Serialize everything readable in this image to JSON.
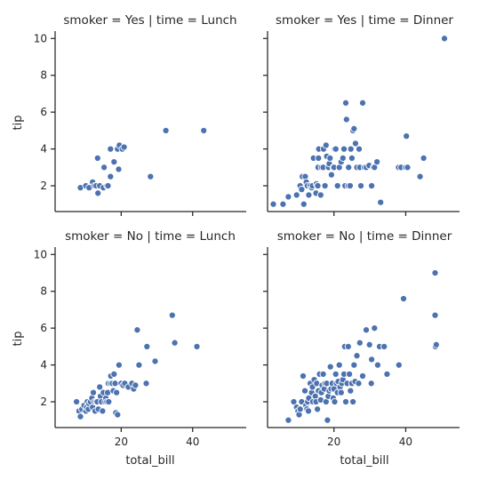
{
  "colors": {
    "point": "#4c72b0",
    "axis": "#262626",
    "background": "#ffffff"
  },
  "axis_labels": {
    "x": "total_bill",
    "y": "tip"
  },
  "chart_data": [
    {
      "type": "scatter",
      "title": "smoker = Yes | time = Lunch",
      "xlim": [
        1.5,
        55
      ],
      "ylim": [
        0.6,
        10.4
      ],
      "xticks": [
        20,
        40
      ],
      "yticks": [
        2,
        4,
        6,
        8,
        10
      ],
      "x": [
        8.6,
        10.1,
        11.0,
        12.0,
        12.5,
        13.0,
        13.4,
        13.5,
        14.0,
        15.0,
        15.2,
        16.0,
        16.3,
        17.0,
        17.0,
        18.0,
        19.0,
        19.3,
        19.5,
        20.3,
        20.8,
        28.2,
        32.5,
        43.1
      ],
      "y": [
        1.9,
        2.0,
        1.9,
        2.2,
        2.0,
        2.0,
        3.5,
        1.6,
        2.0,
        1.9,
        3.0,
        2.0,
        2.0,
        2.5,
        4.0,
        3.3,
        4.0,
        2.9,
        4.2,
        4.0,
        4.1,
        2.5,
        5.0,
        5.0
      ]
    },
    {
      "type": "scatter",
      "title": "smoker = Yes | time = Dinner",
      "xlim": [
        1.5,
        55
      ],
      "ylim": [
        0.6,
        10.4
      ],
      "xticks": [
        20,
        40
      ],
      "yticks": [
        2,
        4,
        6,
        8,
        10
      ],
      "x": [
        3.1,
        5.8,
        7.3,
        9.6,
        10.6,
        11.0,
        11.2,
        11.6,
        12.0,
        12.3,
        12.6,
        13.0,
        13.4,
        13.8,
        14.0,
        14.3,
        15.0,
        15.1,
        15.4,
        15.5,
        15.6,
        15.7,
        15.8,
        16.3,
        16.5,
        17.0,
        17.1,
        17.5,
        17.8,
        18.0,
        18.5,
        18.7,
        18.9,
        19.3,
        19.8,
        20.0,
        20.2,
        20.5,
        21.0,
        21.5,
        22.0,
        22.5,
        22.8,
        23.1,
        23.3,
        23.5,
        24.0,
        24.1,
        24.5,
        24.7,
        25.0,
        25.3,
        25.6,
        26.0,
        26.4,
        27.0,
        27.2,
        27.5,
        28.0,
        28.5,
        29.0,
        29.8,
        30.5,
        31.0,
        31.3,
        32.0,
        33.0,
        38.0,
        38.7,
        40.0,
        40.2,
        40.5,
        44.0,
        45.0,
        50.8
      ],
      "y": [
        1.0,
        1.0,
        1.4,
        1.5,
        2.0,
        1.8,
        2.5,
        1.0,
        2.5,
        2.2,
        2.0,
        1.5,
        2.0,
        1.9,
        2.0,
        3.5,
        1.6,
        2.1,
        2.0,
        2.0,
        3.0,
        3.5,
        4.0,
        1.5,
        3.0,
        3.0,
        4.0,
        2.0,
        4.2,
        3.6,
        3.0,
        3.2,
        3.5,
        2.6,
        3.0,
        3.0,
        4.0,
        4.0,
        2.0,
        3.0,
        3.3,
        3.5,
        4.0,
        2.0,
        6.5,
        5.6,
        2.0,
        3.0,
        2.0,
        4.0,
        3.5,
        5.0,
        5.1,
        4.3,
        3.0,
        4.0,
        3.0,
        2.0,
        6.5,
        3.0,
        3.0,
        3.1,
        2.0,
        3.0,
        3.0,
        3.3,
        1.1,
        3.0,
        3.0,
        3.0,
        4.7,
        3.0,
        2.5,
        3.5,
        10.0
      ]
    },
    {
      "type": "scatter",
      "title": "smoker = No | time = Lunch",
      "xlim": [
        1.5,
        55
      ],
      "ylim": [
        0.6,
        10.4
      ],
      "xticks": [
        20,
        40
      ],
      "yticks": [
        2,
        4,
        6,
        8,
        10
      ],
      "x": [
        7.5,
        8.2,
        8.6,
        9.0,
        9.6,
        10.1,
        10.3,
        10.5,
        10.8,
        11.0,
        11.4,
        11.8,
        12.0,
        12.2,
        12.5,
        12.7,
        13.0,
        13.3,
        13.6,
        14.0,
        14.2,
        14.5,
        14.8,
        15.0,
        15.5,
        15.7,
        16.0,
        16.2,
        16.4,
        16.5,
        17.0,
        17.1,
        17.5,
        17.8,
        18.0,
        18.3,
        18.5,
        18.7,
        19.0,
        19.4,
        20.0,
        20.5,
        21.0,
        22.0,
        23.0,
        23.5,
        24.0,
        24.5,
        25.0,
        27.0,
        27.2,
        29.5,
        34.3,
        35.0,
        41.2
      ],
      "y": [
        2.0,
        1.5,
        1.2,
        1.6,
        1.8,
        1.5,
        1.7,
        2.0,
        1.6,
        1.9,
        2.0,
        2.2,
        1.7,
        2.5,
        2.0,
        1.5,
        2.0,
        2.0,
        1.6,
        2.8,
        2.3,
        2.0,
        1.5,
        2.5,
        2.0,
        2.2,
        2.0,
        2.5,
        3.0,
        2.0,
        3.0,
        3.4,
        3.0,
        2.6,
        3.5,
        3.0,
        1.4,
        2.5,
        1.3,
        4.0,
        3.0,
        2.9,
        3.0,
        2.8,
        3.0,
        2.7,
        2.9,
        5.9,
        4.0,
        3.0,
        5.0,
        4.2,
        6.7,
        5.2,
        5.0
      ]
    },
    {
      "type": "scatter",
      "title": "smoker = No | time = Dinner",
      "xlim": [
        1.5,
        55
      ],
      "ylim": [
        0.6,
        10.4
      ],
      "xticks": [
        20,
        40
      ],
      "yticks": [
        2,
        4,
        6,
        8,
        10
      ],
      "x": [
        7.3,
        8.8,
        9.6,
        10.0,
        10.3,
        10.6,
        11.0,
        11.4,
        11.9,
        12.2,
        12.5,
        12.7,
        12.9,
        13.0,
        13.4,
        13.8,
        14.0,
        14.1,
        14.5,
        14.8,
        15.0,
        15.2,
        15.4,
        15.7,
        16.0,
        16.3,
        16.5,
        16.7,
        17.0,
        17.3,
        17.5,
        17.8,
        18.0,
        18.2,
        18.4,
        18.7,
        19.0,
        19.2,
        19.5,
        19.8,
        20.0,
        20.2,
        20.5,
        20.7,
        21.0,
        21.2,
        21.5,
        21.7,
        22.0,
        22.2,
        22.5,
        22.8,
        23.0,
        23.3,
        23.7,
        24.0,
        24.3,
        24.6,
        25.0,
        25.3,
        25.6,
        25.9,
        26.4,
        26.9,
        27.2,
        28.0,
        29.0,
        29.9,
        30.4,
        30.5,
        31.3,
        32.2,
        32.7,
        34.0,
        34.8,
        38.1,
        39.4,
        48.2,
        48.2,
        48.3,
        48.5
      ],
      "y": [
        1.0,
        2.0,
        1.7,
        1.5,
        1.3,
        1.6,
        2.0,
        3.4,
        2.6,
        1.8,
        1.6,
        2.0,
        1.5,
        2.2,
        3.0,
        2.5,
        2.8,
        2.0,
        3.2,
        2.3,
        2.0,
        3.0,
        1.6,
        2.6,
        3.5,
        2.1,
        2.5,
        2.9,
        3.5,
        2.7,
        3.0,
        2.0,
        3.0,
        1.0,
        2.3,
        2.6,
        3.9,
        2.7,
        3.0,
        2.2,
        2.7,
        2.0,
        3.5,
        3.0,
        2.5,
        3.1,
        4.0,
        2.8,
        2.5,
        3.0,
        3.2,
        3.5,
        5.0,
        2.0,
        3.0,
        5.0,
        3.5,
        2.6,
        3.0,
        2.0,
        4.0,
        3.1,
        4.5,
        3.0,
        5.2,
        3.4,
        5.9,
        5.1,
        3.0,
        4.3,
        6.0,
        4.0,
        5.0,
        5.0,
        3.5,
        4.0,
        7.6,
        9.0,
        6.7,
        5.0,
        5.1
      ]
    }
  ]
}
